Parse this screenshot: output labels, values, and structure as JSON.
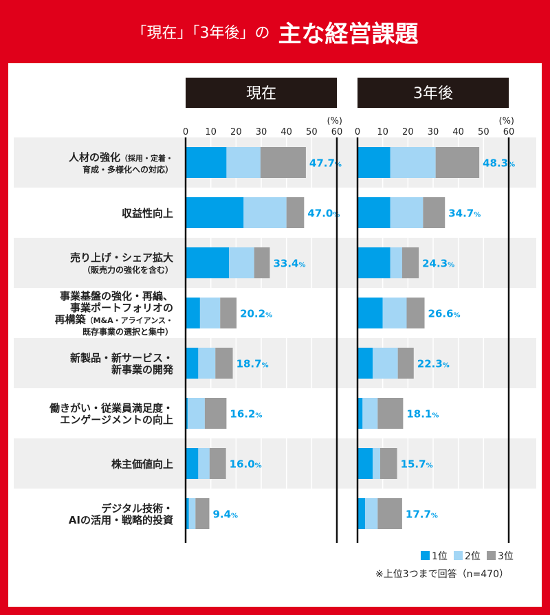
{
  "header": {
    "subtitle": "「現在」「3年後」の",
    "title": "主な経営課題"
  },
  "colors": {
    "rank1": "#00a0e9",
    "rank2": "#a3d6f5",
    "rank3": "#9b9b9b",
    "accent": "#e0001a",
    "value_text": "#00a0e9"
  },
  "chart_data": {
    "type": "bar",
    "orientation": "horizontal",
    "stacked": true,
    "unit": "(%)",
    "xlim": [
      0,
      60
    ],
    "x_ticks": [
      0,
      10,
      20,
      30,
      40,
      50,
      60
    ],
    "categories": [
      {
        "line1": "人材の強化",
        "line1_small": "（採用・定着・",
        "line2": "育成・多様化への対応）"
      },
      {
        "line1": "収益性向上"
      },
      {
        "line1": "売り上げ・シェア拡大",
        "line2": "（販売力の強化を含む）"
      },
      {
        "line1": "事業基盤の強化・再編、",
        "line1b": "事業ポートフォリオの",
        "line1c": "再構築",
        "line1c_small": "（M&A・アライアンス・",
        "line2": "既存事業の選択と集中）"
      },
      {
        "line1": "新製品・新サービス・",
        "line1b": "新事業の開発"
      },
      {
        "line1": "働きがい・従業員満足度・",
        "line1b": "エンゲージメントの向上"
      },
      {
        "line1": "株主価値向上"
      },
      {
        "line1": "デジタル技術・",
        "line1b": "AIの活用・戦略的投資"
      }
    ],
    "panels": [
      {
        "title": "現在",
        "totals": [
          "47.7",
          "47.0",
          "33.4",
          "20.2",
          "18.7",
          "16.2",
          "16.0",
          "9.4"
        ],
        "series": [
          {
            "name": "1位",
            "values": [
              16.2,
              23.0,
              17.2,
              5.7,
              5.0,
              0.8,
              5.0,
              1.3
            ]
          },
          {
            "name": "2位",
            "values": [
              13.5,
              17.0,
              10.0,
              8.0,
              6.8,
              6.8,
              4.5,
              2.6
            ]
          },
          {
            "name": "3位",
            "values": [
              18.0,
              7.0,
              6.2,
              6.5,
              6.9,
              8.6,
              6.5,
              5.5
            ]
          }
        ]
      },
      {
        "title": "3年後",
        "totals": [
          "48.3",
          "34.7",
          "24.3",
          "26.6",
          "22.3",
          "18.1",
          "15.7",
          "17.7"
        ],
        "series": [
          {
            "name": "1位",
            "values": [
              13.0,
              13.0,
              13.0,
              10.0,
              6.0,
              2.0,
              6.0,
              3.0
            ]
          },
          {
            "name": "2位",
            "values": [
              18.0,
              13.0,
              4.7,
              9.5,
              10.0,
              6.0,
              3.0,
              5.0
            ]
          },
          {
            "name": "3位",
            "values": [
              17.3,
              8.7,
              6.6,
              7.1,
              6.3,
              10.1,
              6.7,
              9.7
            ]
          }
        ]
      }
    ],
    "value_suffix": "%",
    "legend": [
      "1位",
      "2位",
      "3位"
    ],
    "legend_position": "bottom-right",
    "note": "※上位3つまで回答（n=470）"
  }
}
